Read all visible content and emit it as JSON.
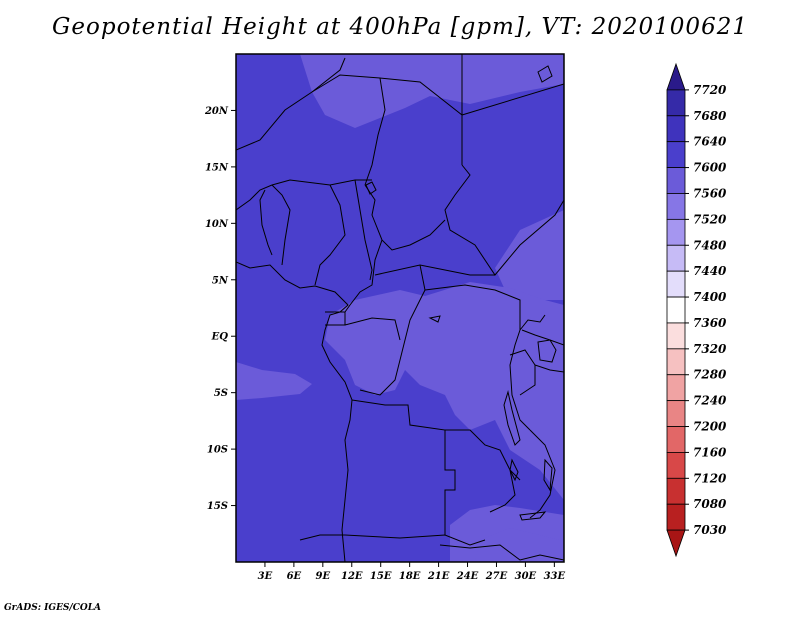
{
  "title": "Geopotential Height at 400hPa [gpm], VT: 2020100621",
  "credit": "GrADS: IGES/COLA",
  "map": {
    "lon_range": [
      0,
      34
    ],
    "lat_range": [
      -20,
      25
    ],
    "lon_ticks": [
      {
        "value": 3,
        "label": "3E"
      },
      {
        "value": 6,
        "label": "6E"
      },
      {
        "value": 9,
        "label": "9E"
      },
      {
        "value": 12,
        "label": "12E"
      },
      {
        "value": 15,
        "label": "15E"
      },
      {
        "value": 18,
        "label": "18E"
      },
      {
        "value": 21,
        "label": "21E"
      },
      {
        "value": 24,
        "label": "24E"
      },
      {
        "value": 27,
        "label": "27E"
      },
      {
        "value": 30,
        "label": "30E"
      },
      {
        "value": 33,
        "label": "33E"
      }
    ],
    "lat_ticks": [
      {
        "value": 20,
        "label": "20N"
      },
      {
        "value": 15,
        "label": "15N"
      },
      {
        "value": 10,
        "label": "10N"
      },
      {
        "value": 5,
        "label": "5N"
      },
      {
        "value": 0,
        "label": "EQ"
      },
      {
        "value": -5,
        "label": "5S"
      },
      {
        "value": -10,
        "label": "10S"
      },
      {
        "value": -15,
        "label": "15S"
      }
    ],
    "fill_colors": {
      "level_7600": "#4a3fcc",
      "level_7560": "#6b5bd9"
    }
  },
  "colorbar": {
    "levels": [
      "7720",
      "7680",
      "7640",
      "7600",
      "7560",
      "7520",
      "7480",
      "7440",
      "7400",
      "7360",
      "7320",
      "7280",
      "7240",
      "7200",
      "7160",
      "7120",
      "7080",
      "7030"
    ],
    "colors": [
      "#2a1a8a",
      "#352aa8",
      "#3f33bd",
      "#4a3fcc",
      "#6b5bd9",
      "#8676e6",
      "#a596f0",
      "#c6bbf6",
      "#e3ddfb",
      "#ffffff",
      "#fbdede",
      "#f6c1c1",
      "#f0a3a3",
      "#e98585",
      "#e26767",
      "#d84848",
      "#c83030",
      "#b82020",
      "#a81515"
    ]
  }
}
